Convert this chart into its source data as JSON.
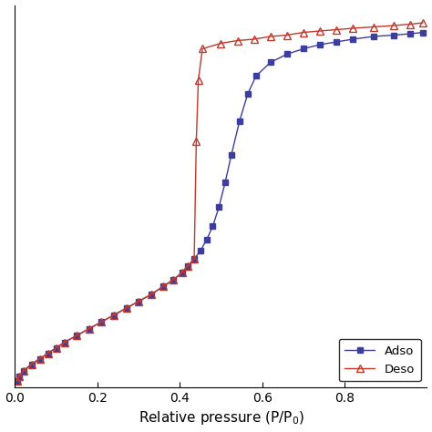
{
  "adsorption_x": [
    0.005,
    0.01,
    0.02,
    0.04,
    0.06,
    0.08,
    0.1,
    0.12,
    0.15,
    0.18,
    0.21,
    0.24,
    0.27,
    0.3,
    0.33,
    0.36,
    0.385,
    0.405,
    0.42,
    0.435,
    0.45,
    0.465,
    0.48,
    0.495,
    0.51,
    0.525,
    0.545,
    0.565,
    0.585,
    0.62,
    0.66,
    0.7,
    0.74,
    0.78,
    0.82,
    0.87,
    0.92,
    0.96,
    0.99
  ],
  "adsorption_y": [
    5,
    8,
    12,
    17,
    21,
    25,
    29,
    33,
    38,
    43,
    48,
    53,
    58,
    63,
    68,
    74,
    79,
    84,
    89,
    94,
    100,
    108,
    118,
    132,
    150,
    170,
    195,
    215,
    228,
    238,
    244,
    248,
    251,
    253,
    255,
    257,
    258,
    259,
    260
  ],
  "desorption_x": [
    0.005,
    0.01,
    0.02,
    0.04,
    0.06,
    0.08,
    0.1,
    0.12,
    0.15,
    0.18,
    0.21,
    0.24,
    0.27,
    0.3,
    0.33,
    0.36,
    0.385,
    0.405,
    0.42,
    0.435,
    0.44,
    0.445,
    0.455,
    0.5,
    0.54,
    0.58,
    0.62,
    0.66,
    0.7,
    0.74,
    0.78,
    0.82,
    0.87,
    0.92,
    0.96,
    0.99
  ],
  "desorption_y": [
    5,
    8,
    12,
    17,
    21,
    25,
    29,
    33,
    38,
    43,
    48,
    53,
    58,
    63,
    68,
    74,
    79,
    84,
    89,
    94,
    180,
    225,
    248,
    252,
    254,
    255,
    257,
    258,
    260,
    261,
    262,
    263,
    264,
    265,
    266,
    267
  ],
  "adsorption_color": "#3d3d9e",
  "desorption_color": "#c0392b",
  "xlabel": "Relative pressure (P/P$_0$)",
  "ylabel": "",
  "adsorption_label": "Adso",
  "desorption_label": "Deso",
  "xlim": [
    0.0,
    1.0
  ],
  "ylim": [
    0,
    280
  ],
  "xticks": [
    0.0,
    0.2,
    0.4,
    0.6,
    0.8
  ],
  "label_fontsize": 11
}
